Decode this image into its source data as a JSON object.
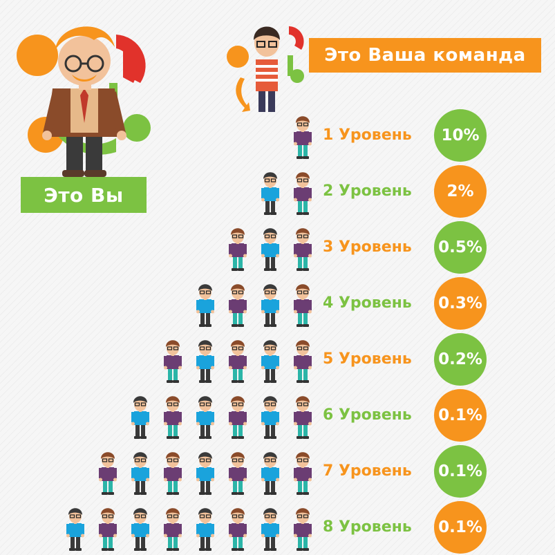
{
  "you": {
    "label": "Это Вы"
  },
  "team": {
    "label": "Это Ваша команда"
  },
  "colors": {
    "green": "#7cc242",
    "orange": "#f7941d",
    "red": "#e1322b",
    "shirt_purple": "#6b3d73",
    "shirt_cyan": "#1aa3dc",
    "pants_teal": "#2bb5a8",
    "pants_dark": "#3a3a3a"
  },
  "levels": [
    {
      "label": "1 Уровень",
      "percent": "10%",
      "people": 1
    },
    {
      "label": "2 Уровень",
      "percent": "2%",
      "people": 2
    },
    {
      "label": "3 Уровень",
      "percent": "0.5%",
      "people": 3
    },
    {
      "label": "4 Уровень",
      "percent": "0.3%",
      "people": 4
    },
    {
      "label": "5 Уровень",
      "percent": "0.2%",
      "people": 5
    },
    {
      "label": "6 Уровень",
      "percent": "0.1%",
      "people": 6
    },
    {
      "label": "7 Уровень",
      "percent": "0.1%",
      "people": 7
    },
    {
      "label": "8 Уровень",
      "percent": "0.1%",
      "people": 8
    }
  ]
}
